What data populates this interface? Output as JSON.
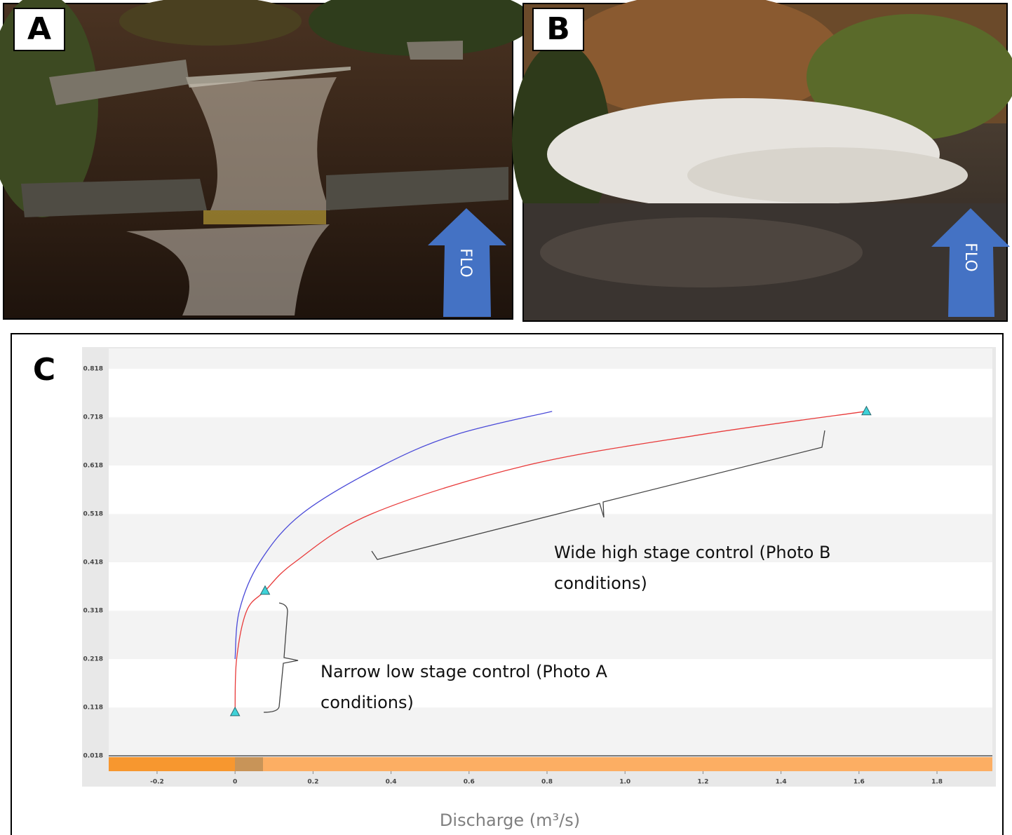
{
  "panels": [
    {
      "label": "A",
      "arrow_text": "FLO"
    },
    {
      "label": "B",
      "arrow_text": "FLO"
    }
  ],
  "chart_data": {
    "type": "line",
    "panel_label": "C",
    "x_label": "Discharge (m³/s)",
    "xlim": [
      -0.324,
      1.942
    ],
    "ylim": [
      0.018,
      0.86
    ],
    "xticks": [
      -0.2,
      0,
      0.2,
      0.4,
      0.6,
      0.8,
      {
        "value": 1,
        "label": "1.0"
      },
      1.2,
      1.4,
      1.6,
      1.8
    ],
    "yticks": [
      0.018,
      0.118,
      0.218,
      0.318,
      0.418,
      0.518,
      0.618,
      0.718,
      0.818
    ],
    "grid": true,
    "series": [
      {
        "color": "#e83a3a",
        "x": [
          0,
          0.004,
          0.03,
          0.077,
          0.153,
          0.35,
          0.746,
          1.196,
          1.619
        ],
        "values": [
          0.108,
          0.218,
          0.318,
          0.359,
          0.418,
          0.518,
          0.618,
          0.682,
          0.73
        ]
      },
      {
        "color": "#4a4ad8",
        "x": [
          0,
          0.011,
          0.063,
          0.171,
          0.378,
          0.567,
          0.813
        ],
        "values": [
          0.218,
          0.318,
          0.418,
          0.518,
          0.618,
          0.682,
          0.73
        ]
      },
      {
        "color": "#3fd2d8",
        "marker": "triangle",
        "x": [
          0,
          0.077,
          1.619
        ],
        "values": [
          0.108,
          0.359,
          0.73
        ]
      }
    ],
    "annotations": [
      {
        "text": "Wide high stage control (Photo B conditions)"
      },
      {
        "text": "Narrow low stage control (Photo A conditions)"
      }
    ]
  }
}
